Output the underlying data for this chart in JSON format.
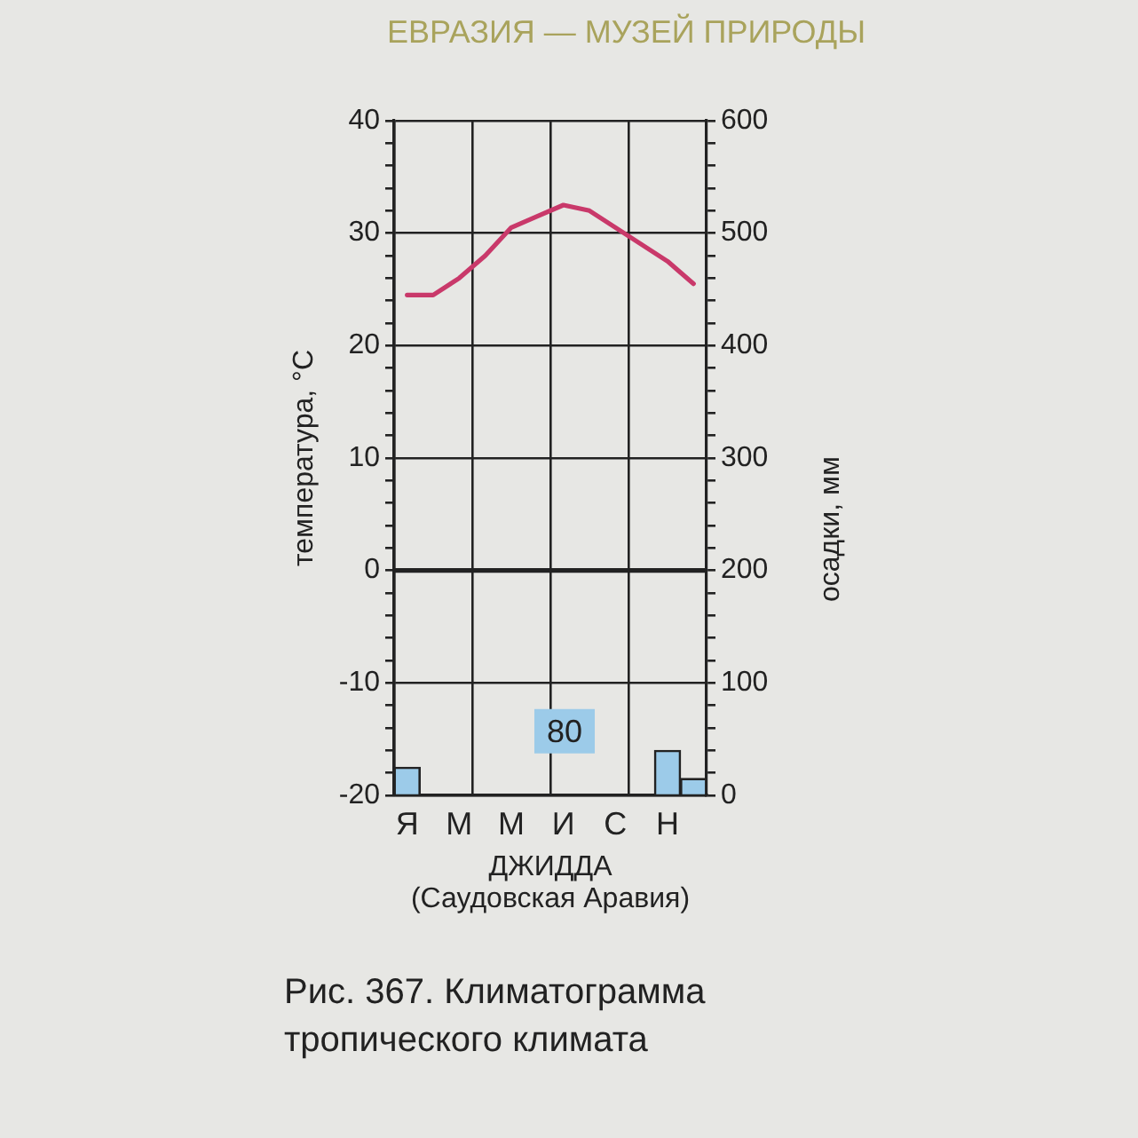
{
  "chart_data": {
    "type": "line",
    "title": "Рис. 367. Климатограмма тропического климата",
    "xlabel": "ДЖИДДА\n(Саудовская Аравия)",
    "ylabel": "температура, °C",
    "y2label": "осадки, мм",
    "annotations": [
      "ЕВРАЗИЯ — МУЗЕЙ ПРИРОДЫ",
      "80"
    ],
    "categories": [
      "Я",
      null,
      "М",
      null,
      "М",
      null,
      "И",
      null,
      "С",
      null,
      "Н",
      null
    ],
    "series": [
      {
        "type": "bar",
        "axis": "y2",
        "color": "#9ccbe9",
        "values": [
          25,
          0,
          0,
          0,
          0,
          0,
          0,
          0,
          0,
          0,
          40,
          15
        ]
      },
      {
        "color": "#c9396a",
        "values": [
          24.5,
          24.5,
          26,
          28,
          30.5,
          31.5,
          32.5,
          32,
          30.5,
          29,
          27.5,
          25.5
        ]
      }
    ],
    "ylim": [
      -20,
      40
    ],
    "yticks": [
      -20,
      {
        "value": -18,
        "label": null
      },
      {
        "value": -16,
        "label": null
      },
      {
        "value": -14,
        "label": null
      },
      {
        "value": -12,
        "label": null
      },
      -10,
      {
        "value": -8,
        "label": null
      },
      {
        "value": -6,
        "label": null
      },
      {
        "value": -4,
        "label": null
      },
      {
        "value": -2,
        "label": null
      },
      0,
      {
        "value": 2,
        "label": null
      },
      {
        "value": 4,
        "label": null
      },
      {
        "value": 6,
        "label": null
      },
      {
        "value": 8,
        "label": null
      },
      10,
      {
        "value": 12,
        "label": null
      },
      {
        "value": 14,
        "label": null
      },
      {
        "value": 16,
        "label": null
      },
      {
        "value": 18,
        "label": null
      },
      20,
      {
        "value": 22,
        "label": null
      },
      {
        "value": 24,
        "label": null
      },
      {
        "value": 26,
        "label": null
      },
      {
        "value": 28,
        "label": null
      },
      30,
      {
        "value": 32,
        "label": null
      },
      {
        "value": 34,
        "label": null
      },
      {
        "value": 36,
        "label": null
      },
      {
        "value": 38,
        "label": null
      },
      40
    ],
    "y2lim": [
      0,
      600
    ],
    "y2ticks": [
      0,
      {
        "value": 20,
        "label": null
      },
      {
        "value": 40,
        "label": null
      },
      {
        "value": 60,
        "label": null
      },
      {
        "value": 80,
        "label": null
      },
      100,
      {
        "value": 120,
        "label": null
      },
      {
        "value": 140,
        "label": null
      },
      {
        "value": 160,
        "label": null
      },
      {
        "value": 180,
        "label": null
      },
      200,
      {
        "value": 220,
        "label": null
      },
      {
        "value": 240,
        "label": null
      },
      {
        "value": 260,
        "label": null
      },
      {
        "value": 280,
        "label": null
      },
      300,
      {
        "value": 320,
        "label": null
      },
      {
        "value": 340,
        "label": null
      },
      {
        "value": 360,
        "label": null
      },
      {
        "value": 380,
        "label": null
      },
      400,
      {
        "value": 420,
        "label": null
      },
      {
        "value": 440,
        "label": null
      },
      {
        "value": 460,
        "label": null
      },
      {
        "value": 480,
        "label": null
      },
      500,
      {
        "value": 520,
        "label": null
      },
      {
        "value": 540,
        "label": null
      },
      {
        "value": 560,
        "label": null
      },
      {
        "value": 580,
        "label": null
      },
      600
    ],
    "ref_lines": [
      {
        "axis": "y",
        "value": 0
      }
    ],
    "grid": true,
    "marker": "none",
    "line_style": "solid"
  }
}
